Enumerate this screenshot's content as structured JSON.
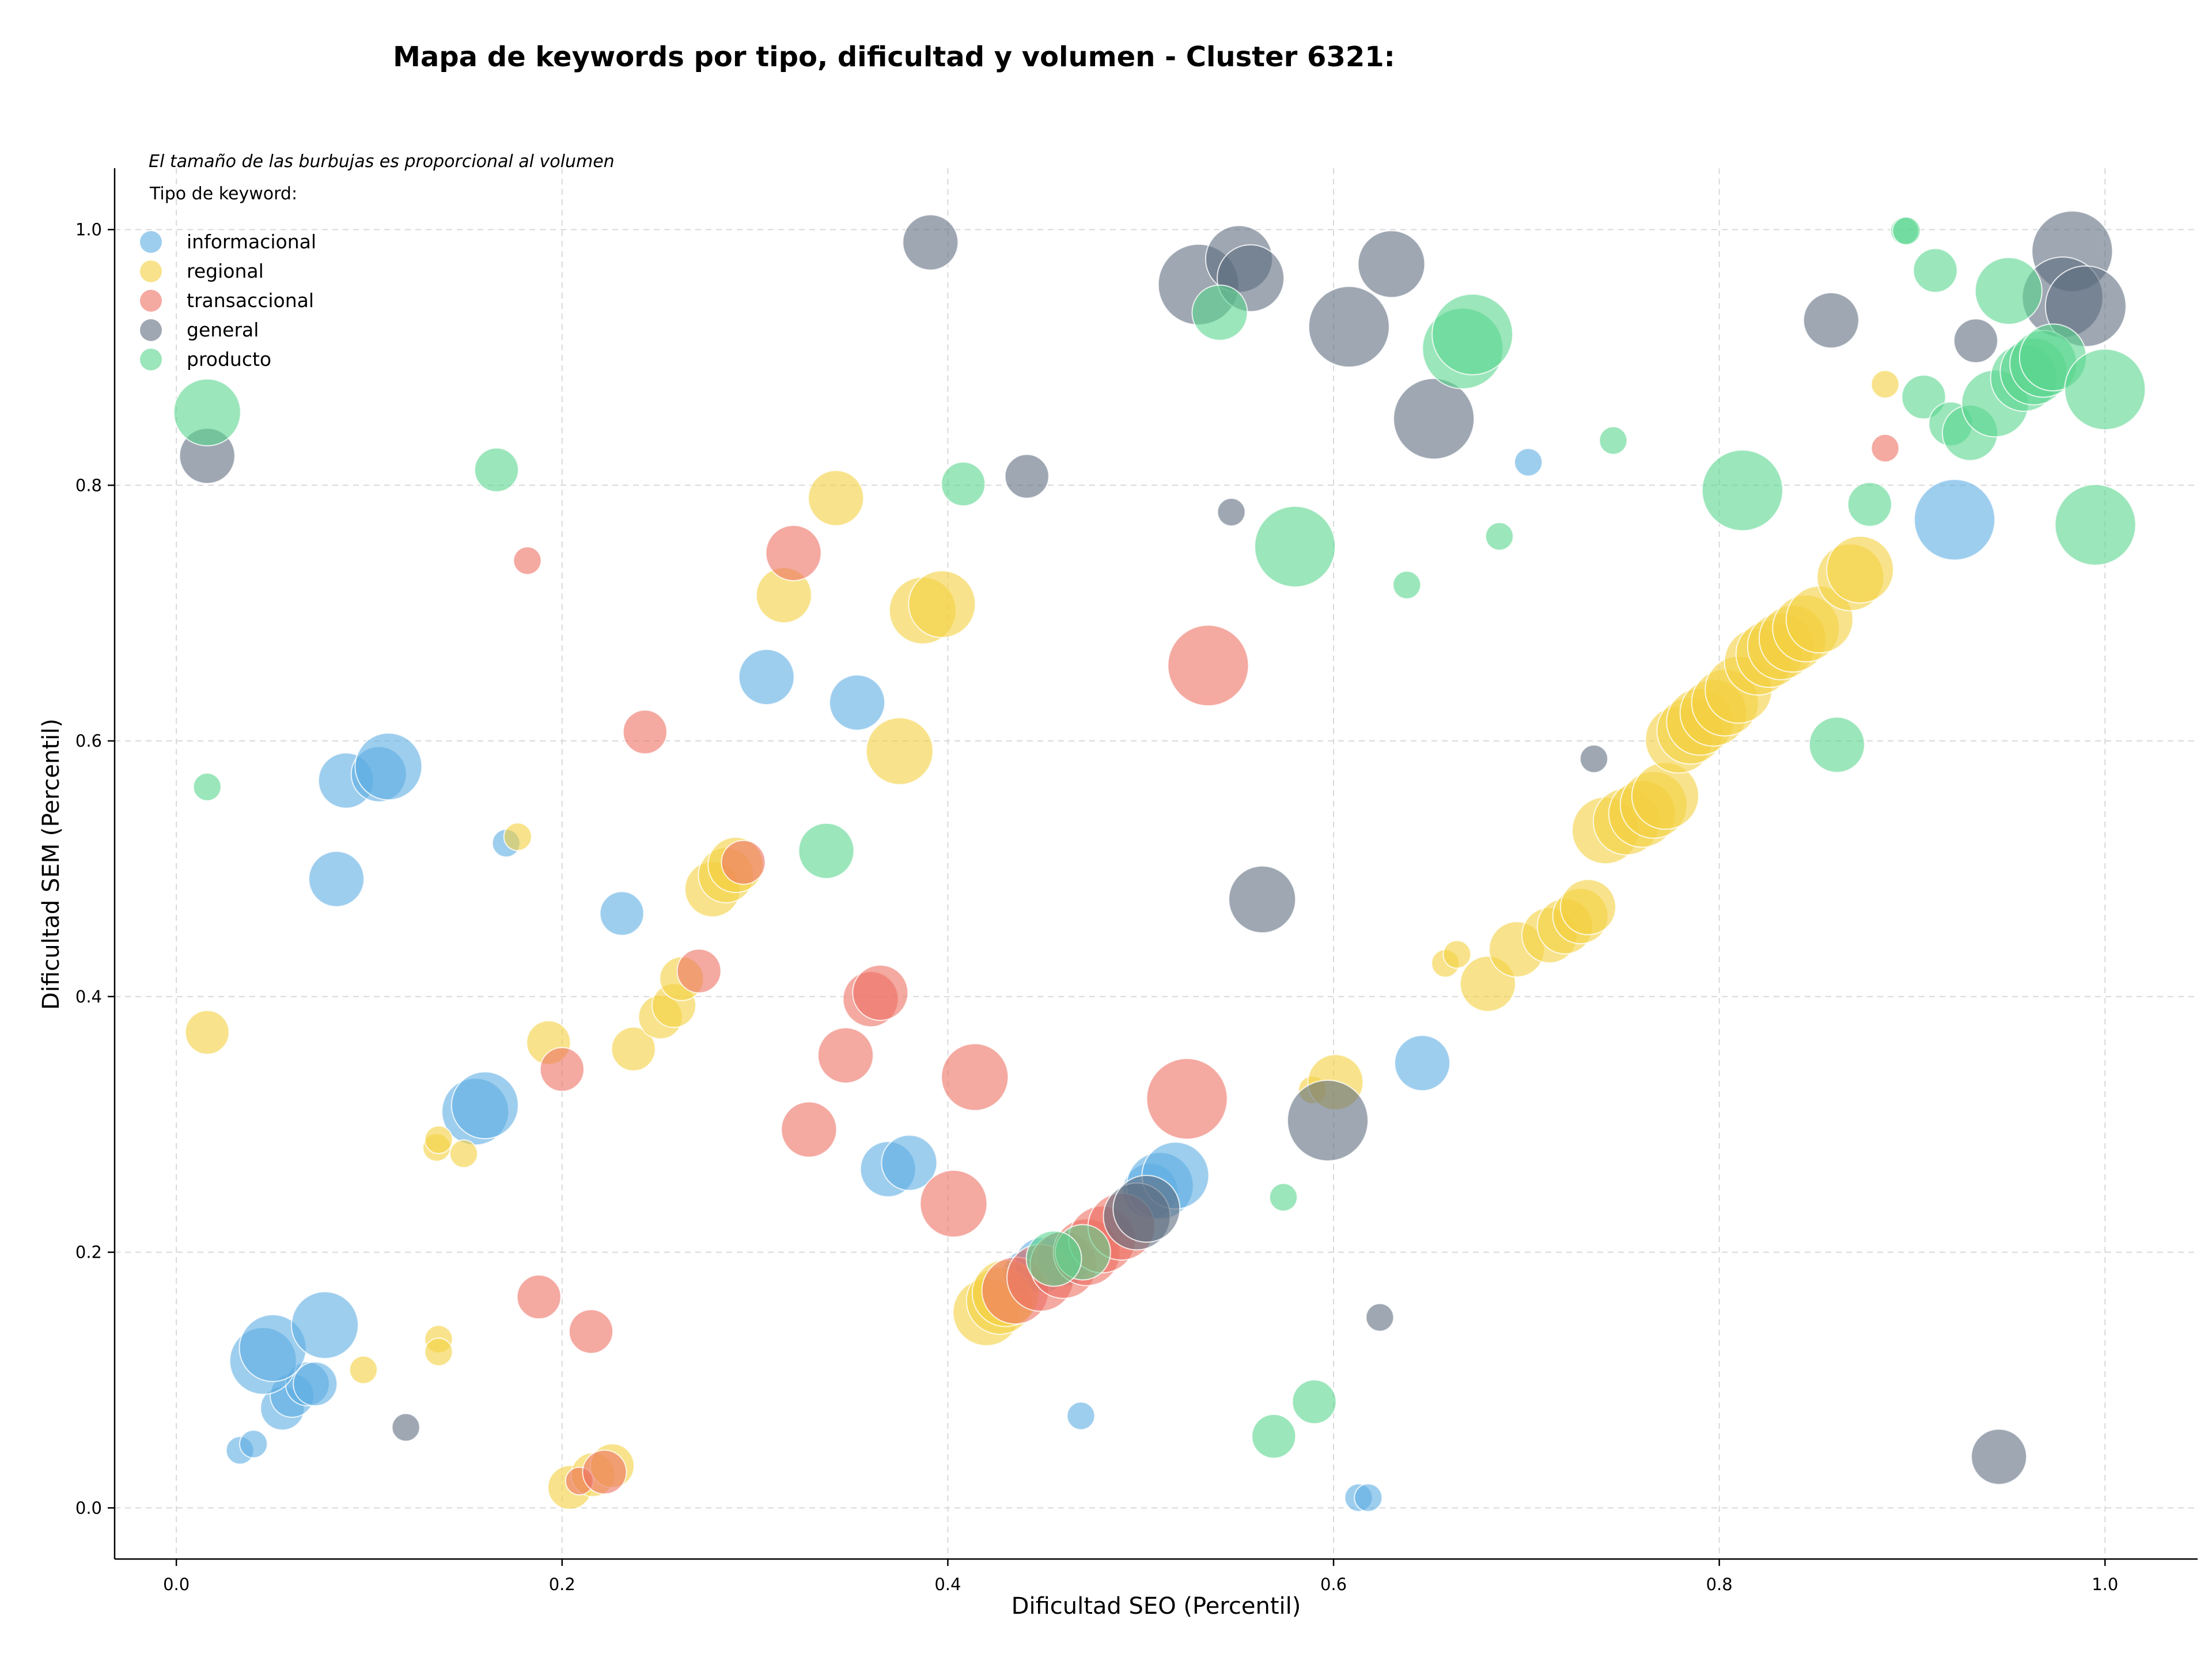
{
  "chart_data": {
    "type": "scatter",
    "title": "Mapa de keywords por tipo, dificultad y volumen - Cluster 6321:",
    "xlabel": "Dificultad SEO (Percentil)",
    "ylabel": "Dificultad SEM (Percentil)",
    "xlim": [
      -0.032,
      1.048
    ],
    "ylim": [
      -0.04,
      1.048
    ],
    "xticks": [
      0.0,
      0.2,
      0.4,
      0.6,
      0.8,
      1.0
    ],
    "yticks": [
      0.0,
      0.2,
      0.4,
      0.6,
      0.8,
      1.0
    ],
    "grid": true,
    "legend_placement": "top-left",
    "legend_title": "Tipo de keyword:",
    "legend_note": "El tamaño de las burbujas es proporcional al volumen",
    "series": [
      {
        "name": "informacional",
        "color": "#5DADE2",
        "points": [
          [
            0.033,
            0.045,
            1
          ],
          [
            0.04,
            0.05,
            1
          ],
          [
            0.055,
            0.078,
            2
          ],
          [
            0.06,
            0.088,
            2
          ],
          [
            0.068,
            0.097,
            2
          ],
          [
            0.072,
            0.097,
            2
          ],
          [
            0.045,
            0.115,
            4
          ],
          [
            0.05,
            0.125,
            4
          ],
          [
            0.077,
            0.143,
            4
          ],
          [
            0.083,
            0.492,
            3
          ],
          [
            0.088,
            0.569,
            3
          ],
          [
            0.105,
            0.574,
            3
          ],
          [
            0.11,
            0.58,
            4
          ],
          [
            0.155,
            0.31,
            4
          ],
          [
            0.16,
            0.315,
            4
          ],
          [
            0.171,
            0.52,
            1
          ],
          [
            0.231,
            0.465,
            2
          ],
          [
            0.306,
            0.65,
            3
          ],
          [
            0.353,
            0.63,
            3
          ],
          [
            0.369,
            0.265,
            3
          ],
          [
            0.38,
            0.27,
            3
          ],
          [
            0.44,
            0.184,
            2
          ],
          [
            0.449,
            0.19,
            3
          ],
          [
            0.46,
            0.195,
            3
          ],
          [
            0.469,
            0.072,
            1
          ],
          [
            0.505,
            0.248,
            3
          ],
          [
            0.51,
            0.252,
            4
          ],
          [
            0.518,
            0.26,
            4
          ],
          [
            0.613,
            0.008,
            1
          ],
          [
            0.618,
            0.008,
            1
          ],
          [
            0.646,
            0.348,
            3
          ],
          [
            0.701,
            0.818,
            1
          ],
          [
            0.922,
            0.773,
            5
          ]
        ]
      },
      {
        "name": "regional",
        "color": "#F4D03F",
        "points": [
          [
            0.016,
            0.372,
            2
          ],
          [
            0.097,
            0.108,
            1
          ],
          [
            0.135,
            0.282,
            1
          ],
          [
            0.136,
            0.288,
            1
          ],
          [
            0.136,
            0.132,
            1
          ],
          [
            0.136,
            0.122,
            1
          ],
          [
            0.149,
            0.277,
            1
          ],
          [
            0.177,
            0.525,
            1
          ],
          [
            0.193,
            0.364,
            2
          ],
          [
            0.204,
            0.016,
            2
          ],
          [
            0.216,
            0.026,
            2
          ],
          [
            0.226,
            0.033,
            2
          ],
          [
            0.237,
            0.359,
            2
          ],
          [
            0.251,
            0.384,
            2
          ],
          [
            0.258,
            0.393,
            2
          ],
          [
            0.262,
            0.414,
            2
          ],
          [
            0.278,
            0.484,
            3
          ],
          [
            0.285,
            0.495,
            3
          ],
          [
            0.29,
            0.503,
            3
          ],
          [
            0.315,
            0.714,
            3
          ],
          [
            0.342,
            0.79,
            3
          ],
          [
            0.375,
            0.592,
            4
          ],
          [
            0.387,
            0.702,
            4
          ],
          [
            0.397,
            0.707,
            4
          ],
          [
            0.42,
            0.153,
            4
          ],
          [
            0.427,
            0.162,
            4
          ],
          [
            0.43,
            0.168,
            4
          ],
          [
            0.589,
            0.327,
            1
          ],
          [
            0.601,
            0.333,
            3
          ],
          [
            0.658,
            0.426,
            1
          ],
          [
            0.664,
            0.433,
            1
          ],
          [
            0.68,
            0.41,
            3
          ],
          [
            0.695,
            0.437,
            3
          ],
          [
            0.712,
            0.448,
            3
          ],
          [
            0.72,
            0.455,
            3
          ],
          [
            0.728,
            0.463,
            3
          ],
          [
            0.732,
            0.47,
            3
          ],
          [
            0.741,
            0.53,
            4
          ],
          [
            0.752,
            0.537,
            4
          ],
          [
            0.76,
            0.543,
            4
          ],
          [
            0.766,
            0.55,
            4
          ],
          [
            0.772,
            0.557,
            4
          ],
          [
            0.779,
            0.601,
            4
          ],
          [
            0.785,
            0.608,
            4
          ],
          [
            0.79,
            0.615,
            4
          ],
          [
            0.797,
            0.622,
            4
          ],
          [
            0.803,
            0.63,
            4
          ],
          [
            0.81,
            0.64,
            4
          ],
          [
            0.82,
            0.662,
            4
          ],
          [
            0.826,
            0.668,
            4
          ],
          [
            0.832,
            0.674,
            4
          ],
          [
            0.838,
            0.68,
            4
          ],
          [
            0.845,
            0.688,
            4
          ],
          [
            0.852,
            0.695,
            4
          ],
          [
            0.868,
            0.728,
            4
          ],
          [
            0.873,
            0.734,
            4
          ],
          [
            0.886,
            0.879,
            1
          ]
        ]
      },
      {
        "name": "transaccional",
        "color": "#EC7063",
        "points": [
          [
            0.182,
            0.741,
            1
          ],
          [
            0.188,
            0.165,
            2
          ],
          [
            0.2,
            0.343,
            2
          ],
          [
            0.209,
            0.021,
            1
          ],
          [
            0.215,
            0.138,
            2
          ],
          [
            0.222,
            0.028,
            2
          ],
          [
            0.243,
            0.607,
            2
          ],
          [
            0.271,
            0.42,
            2
          ],
          [
            0.294,
            0.505,
            2
          ],
          [
            0.32,
            0.747,
            3
          ],
          [
            0.328,
            0.296,
            3
          ],
          [
            0.347,
            0.354,
            3
          ],
          [
            0.36,
            0.398,
            3
          ],
          [
            0.365,
            0.403,
            3
          ],
          [
            0.403,
            0.238,
            4
          ],
          [
            0.414,
            0.337,
            4
          ],
          [
            0.435,
            0.17,
            4
          ],
          [
            0.448,
            0.18,
            4
          ],
          [
            0.46,
            0.19,
            4
          ],
          [
            0.472,
            0.2,
            4
          ],
          [
            0.48,
            0.21,
            4
          ],
          [
            0.49,
            0.22,
            4
          ],
          [
            0.524,
            0.32,
            5
          ],
          [
            0.535,
            0.659,
            5
          ],
          [
            0.886,
            0.829,
            1
          ]
        ]
      },
      {
        "name": "general",
        "color": "#5D6D7E",
        "points": [
          [
            0.016,
            0.823,
            3
          ],
          [
            0.119,
            0.063,
            1
          ],
          [
            0.391,
            0.99,
            3
          ],
          [
            0.441,
            0.807,
            2
          ],
          [
            0.53,
            0.957,
            5
          ],
          [
            0.547,
            0.779,
            1
          ],
          [
            0.551,
            0.977,
            4
          ],
          [
            0.557,
            0.962,
            4
          ],
          [
            0.563,
            0.476,
            4
          ],
          [
            0.597,
            0.303,
            5
          ],
          [
            0.608,
            0.924,
            5
          ],
          [
            0.63,
            0.973,
            4
          ],
          [
            0.624,
            0.149,
            1
          ],
          [
            0.652,
            0.852,
            5
          ],
          [
            0.735,
            0.586,
            1
          ],
          [
            0.858,
            0.929,
            3
          ],
          [
            0.933,
            0.913,
            2
          ],
          [
            0.945,
            0.04,
            3
          ],
          [
            0.983,
            0.983,
            5
          ],
          [
            0.978,
            0.947,
            5
          ],
          [
            0.99,
            0.94,
            5
          ],
          [
            0.498,
            0.228,
            4
          ],
          [
            0.503,
            0.234,
            4
          ]
        ]
      },
      {
        "name": "producto",
        "color": "#58D68D",
        "points": [
          [
            0.016,
            0.857,
            4
          ],
          [
            0.016,
            0.564,
            1
          ],
          [
            0.166,
            0.812,
            2
          ],
          [
            0.337,
            0.514,
            3
          ],
          [
            0.408,
            0.801,
            2
          ],
          [
            0.541,
            0.935,
            3
          ],
          [
            0.569,
            0.056,
            2
          ],
          [
            0.574,
            0.243,
            1
          ],
          [
            0.58,
            0.752,
            5
          ],
          [
            0.59,
            0.083,
            2
          ],
          [
            0.638,
            0.722,
            1
          ],
          [
            0.667,
            0.907,
            5
          ],
          [
            0.672,
            0.918,
            5
          ],
          [
            0.686,
            0.76,
            1
          ],
          [
            0.745,
            0.835,
            1
          ],
          [
            0.812,
            0.796,
            5
          ],
          [
            0.861,
            0.597,
            3
          ],
          [
            0.878,
            0.785,
            2
          ],
          [
            0.896,
            0.999,
            1
          ],
          [
            0.897,
            0.999,
            1
          ],
          [
            0.906,
            0.869,
            2
          ],
          [
            0.912,
            0.968,
            2
          ],
          [
            0.92,
            0.848,
            2
          ],
          [
            0.93,
            0.841,
            3
          ],
          [
            0.943,
            0.864,
            4
          ],
          [
            0.95,
            0.952,
            4
          ],
          [
            0.958,
            0.884,
            4
          ],
          [
            0.963,
            0.889,
            4
          ],
          [
            0.968,
            0.895,
            4
          ],
          [
            0.973,
            0.9,
            4
          ],
          [
            1.0,
            0.875,
            5
          ],
          [
            0.995,
            0.769,
            5
          ],
          [
            0.47,
            0.2,
            3
          ],
          [
            0.455,
            0.195,
            3
          ]
        ]
      }
    ]
  }
}
